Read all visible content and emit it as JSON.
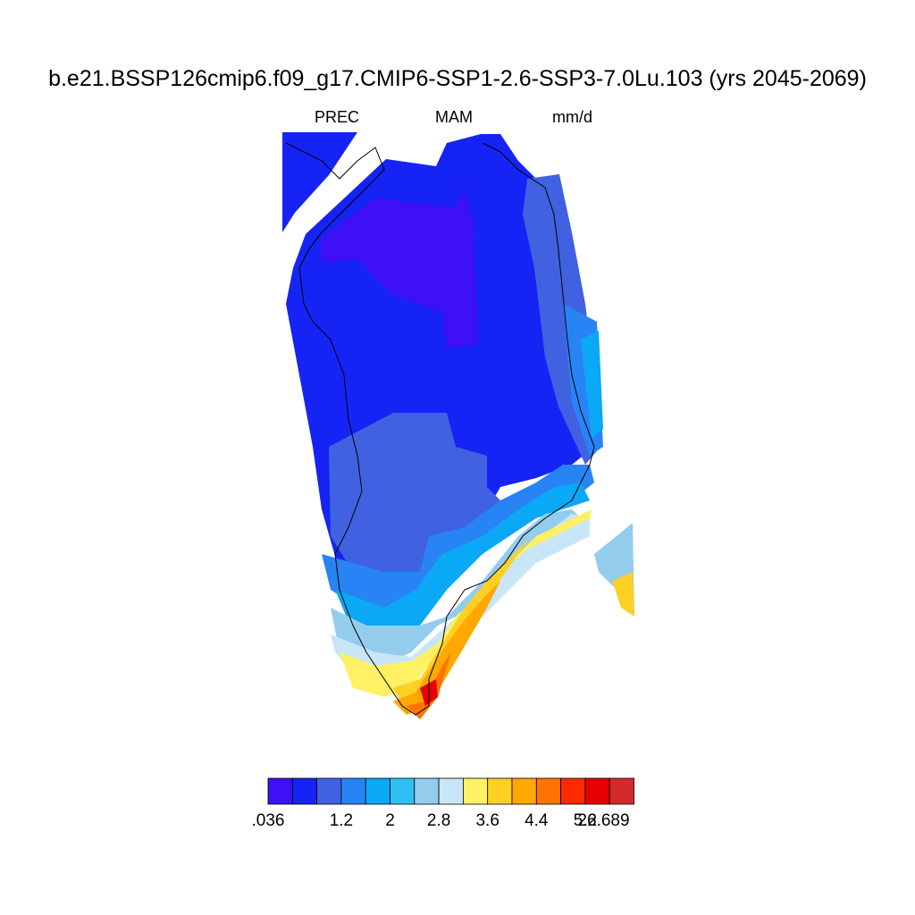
{
  "title": "b.e21.BSSP126cmip6.f09_g17.CMIP6-SSP1-2.6-SSP3-7.0Lu.103 (yrs 2045-2069)",
  "variable": "PREC",
  "season": "MAM",
  "units": "mm/d",
  "colorbar": {
    "colors": [
      "#3d10f5",
      "#1524f5",
      "#4062e0",
      "#2884f5",
      "#0aa8f5",
      "#32c0f2",
      "#94ccee",
      "#c8e6f8",
      "#fff064",
      "#ffd024",
      "#ffa800",
      "#ff7400",
      "#ff2a00",
      "#e40000",
      "#d22a2a"
    ],
    "labels": [
      ".036",
      "1.2",
      "2",
      "2.8",
      "3.6",
      "4.4",
      "5.2",
      "26.689"
    ]
  },
  "map_data": {
    "region": "Greenland",
    "field": "precipitation, spring (MAM) mean",
    "range": [
      0.036,
      26.689
    ],
    "pattern": "lowest in north-central interior (<0.6 mm/d), rising toward the southeast coast, maximum (>5.2 mm/d) on the southern tip"
  }
}
